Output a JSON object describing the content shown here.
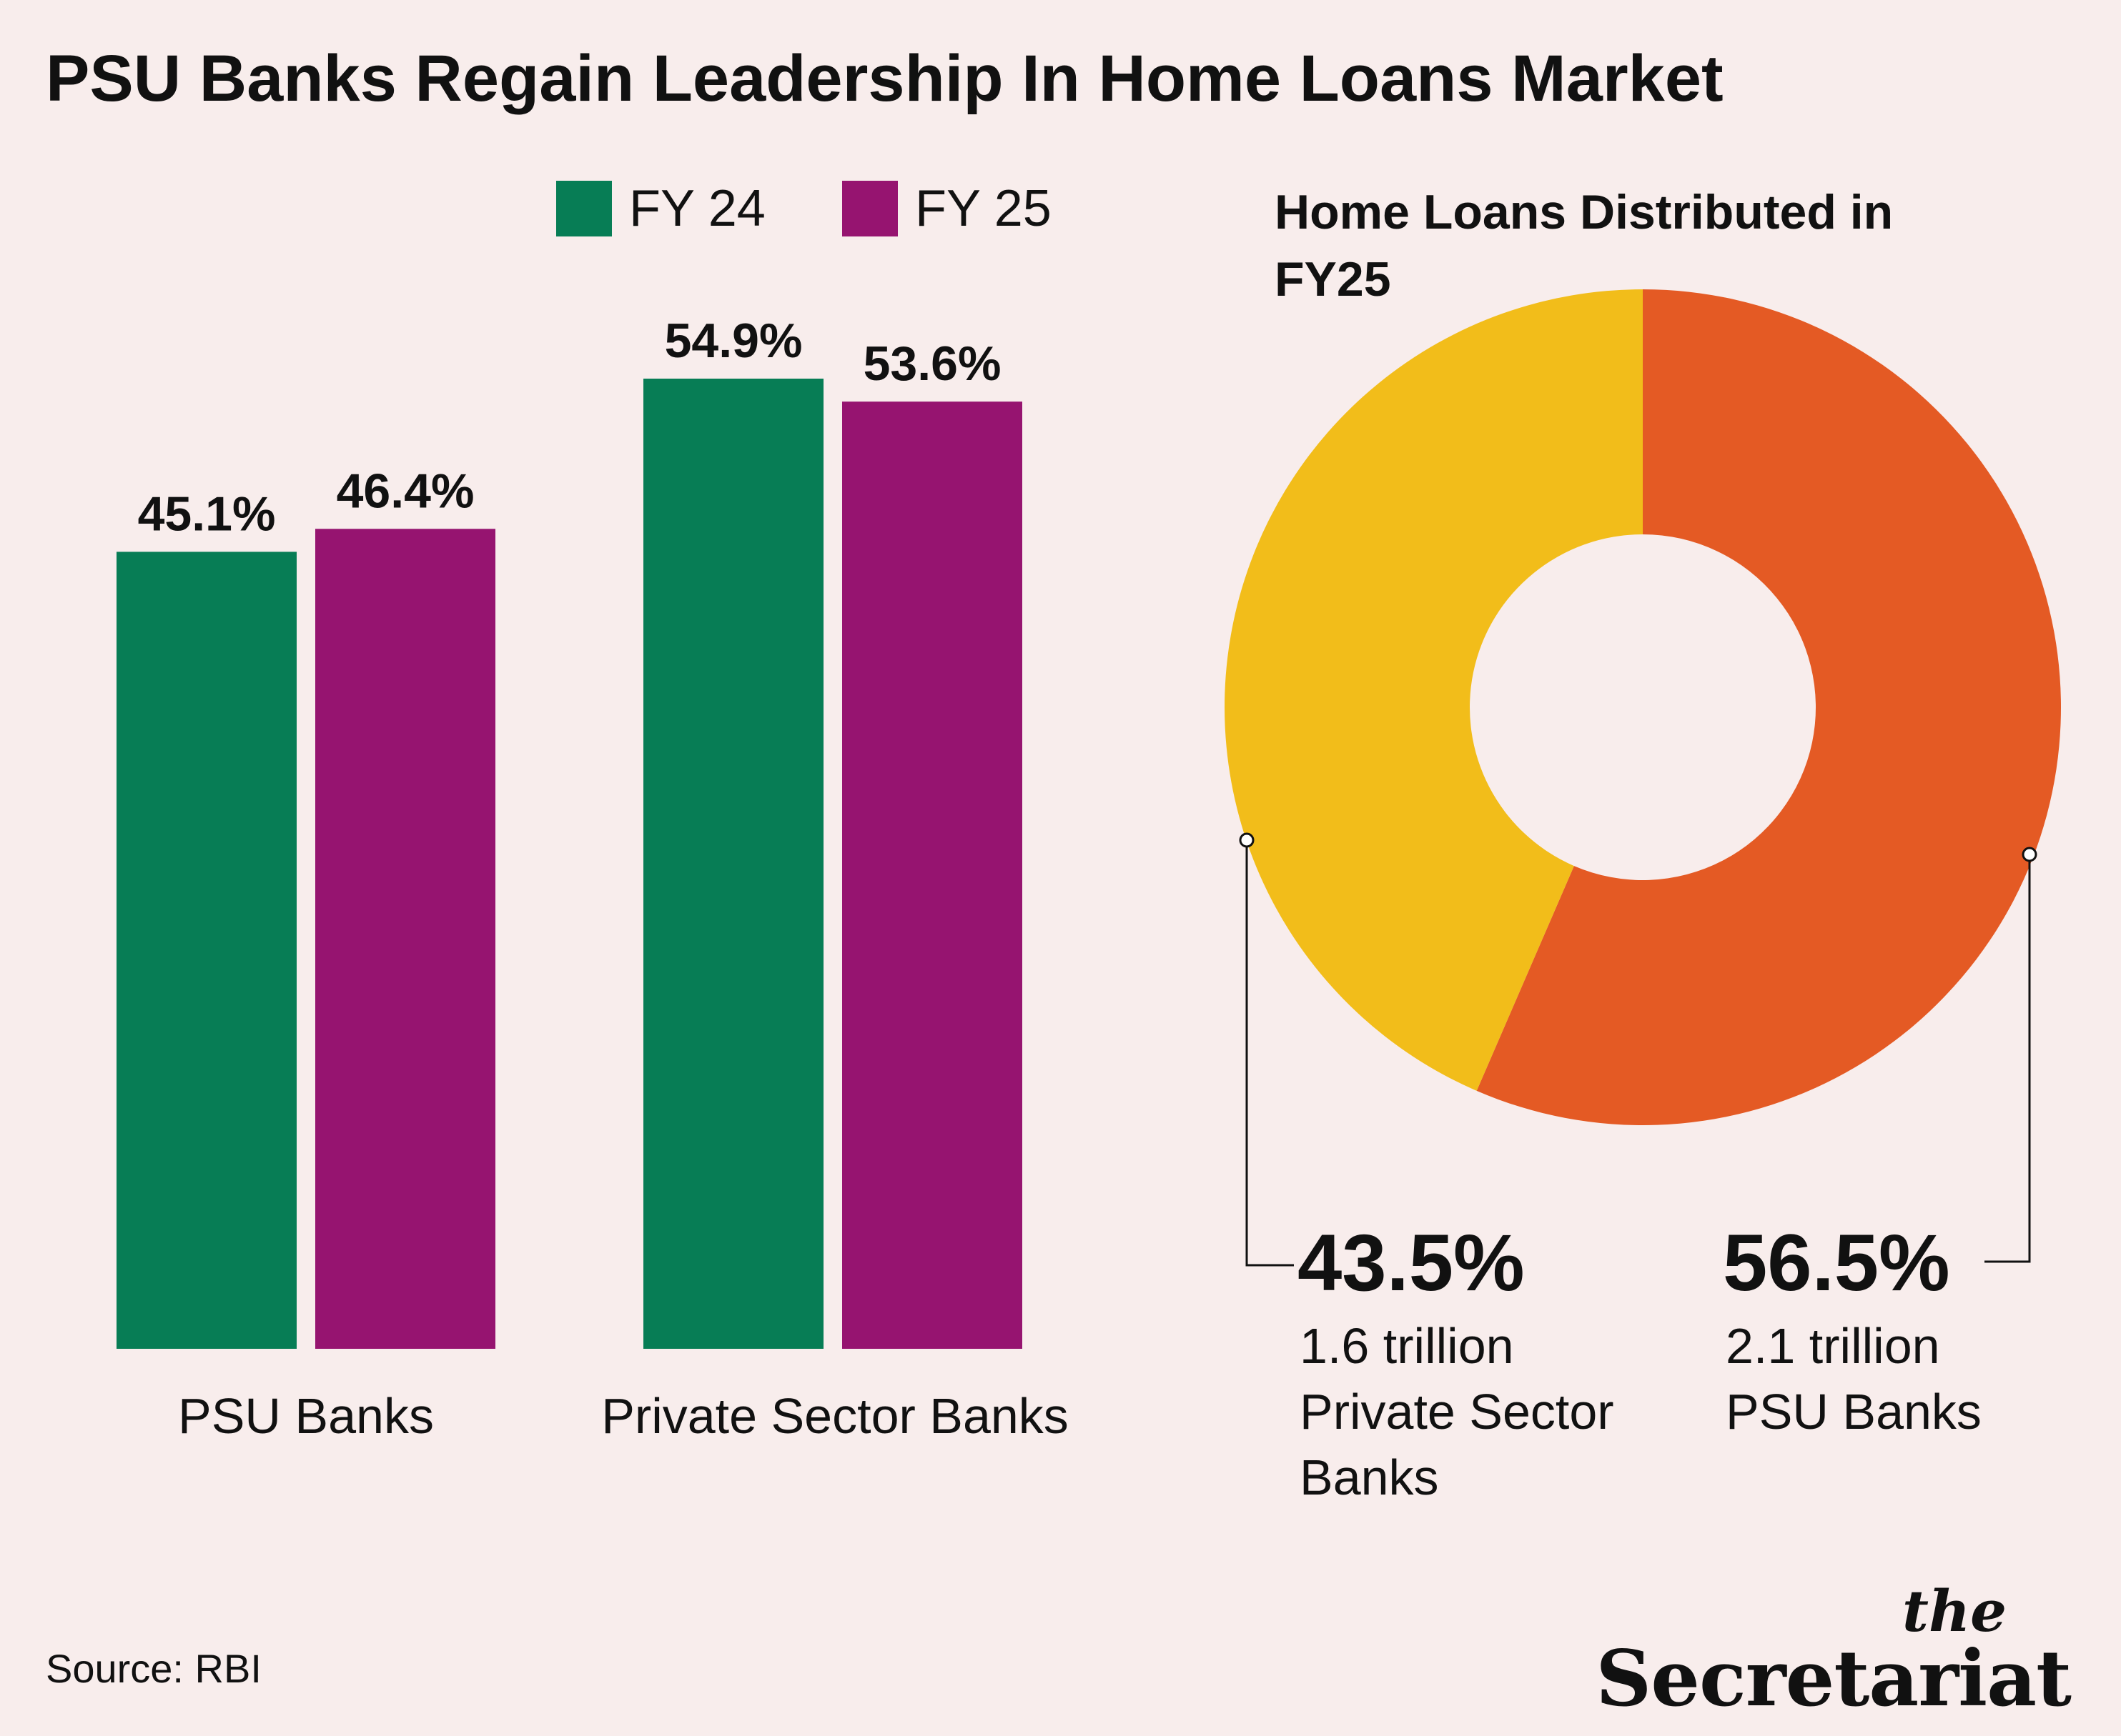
{
  "title": "PSU Banks Regain Leadership In Home Loans Market",
  "legend": [
    {
      "label": "FY 24",
      "color": "#077D55"
    },
    {
      "label": "FY 25",
      "color": "#961470"
    }
  ],
  "chart_data": [
    {
      "type": "bar",
      "categories": [
        "PSU Banks",
        "Private Sector Banks"
      ],
      "series": [
        {
          "name": "FY 24",
          "values": [
            45.1,
            54.9
          ],
          "labels": [
            "45.1%",
            "54.9%"
          ]
        },
        {
          "name": "FY 25",
          "values": [
            46.4,
            53.6
          ],
          "labels": [
            "46.4%",
            "53.6%"
          ]
        }
      ],
      "ylim": [
        0,
        60
      ],
      "grid": false,
      "legend_position": "top"
    },
    {
      "type": "pie",
      "title": "Home Loans Distributed in FY25",
      "slices": [
        {
          "label": "PSU Banks",
          "value": 56.5,
          "value_label": "56.5%",
          "amount": "2.1 trillion",
          "color": "#E45A24"
        },
        {
          "label": "Private Sector Banks",
          "value": 43.5,
          "value_label": "43.5%",
          "amount": "1.6 trillion",
          "color": "#F2BD1A"
        }
      ]
    }
  ],
  "source": "Source: RBI",
  "brand": {
    "the": "the",
    "name": "Secretariat"
  }
}
